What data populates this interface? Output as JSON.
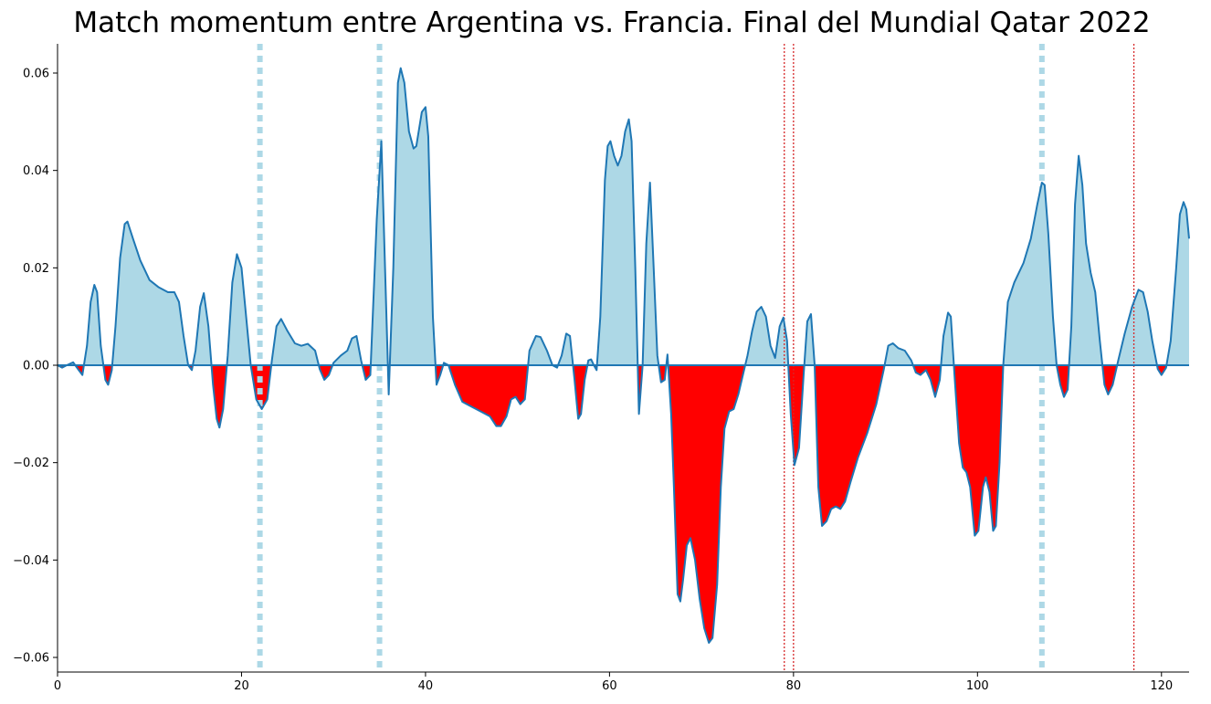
{
  "chart_data": {
    "type": "area",
    "title": "Match momentum entre Argentina vs. Francia. Final del Mundial Qatar 2022",
    "xlabel": "",
    "ylabel": "",
    "xlim": [
      0,
      123
    ],
    "ylim": [
      -0.063,
      0.066
    ],
    "grid": false,
    "x_ticks": [
      0,
      20,
      40,
      60,
      80,
      100,
      120
    ],
    "y_ticks": [
      -0.06,
      -0.04,
      -0.02,
      0.0,
      0.02,
      0.04,
      0.06
    ],
    "x_tick_labels": [
      "0",
      "20",
      "40",
      "60",
      "80",
      "100",
      "120"
    ],
    "y_tick_labels": [
      "−0.06",
      "−0.04",
      "−0.02",
      "0.00",
      "0.02",
      "0.04",
      "0.06"
    ],
    "series": [
      {
        "values": [
          [
            0,
            0
          ],
          [
            0.5,
            -0.0005
          ],
          [
            1,
            0
          ],
          [
            1.7,
            0.0006
          ],
          [
            2.3,
            -0.001
          ],
          [
            2.7,
            -0.002
          ],
          [
            3.2,
            0.004
          ],
          [
            3.6,
            0.013
          ],
          [
            4,
            0.0165
          ],
          [
            4.3,
            0.015
          ],
          [
            4.7,
            0.004
          ],
          [
            5.2,
            -0.003
          ],
          [
            5.5,
            -0.004
          ],
          [
            5.9,
            -0.001
          ],
          [
            6.3,
            0.008
          ],
          [
            6.8,
            0.022
          ],
          [
            7.3,
            0.029
          ],
          [
            7.6,
            0.0295
          ],
          [
            8.2,
            0.026
          ],
          [
            9,
            0.0215
          ],
          [
            10,
            0.0175
          ],
          [
            11,
            0.016
          ],
          [
            12,
            0.015
          ],
          [
            12.7,
            0.015
          ],
          [
            13.2,
            0.013
          ],
          [
            13.7,
            0.006
          ],
          [
            14.2,
            0
          ],
          [
            14.6,
            -0.001
          ],
          [
            15,
            0.003
          ],
          [
            15.5,
            0.012
          ],
          [
            15.9,
            0.0148
          ],
          [
            16.4,
            0.008
          ],
          [
            16.9,
            -0.004
          ],
          [
            17.3,
            -0.011
          ],
          [
            17.6,
            -0.0128
          ],
          [
            18,
            -0.009
          ],
          [
            18.5,
            0.002
          ],
          [
            19,
            0.017
          ],
          [
            19.5,
            0.0228
          ],
          [
            20,
            0.02
          ],
          [
            20.5,
            0.01
          ],
          [
            21,
            0
          ],
          [
            21.6,
            -0.007
          ],
          [
            22.2,
            -0.009
          ],
          [
            22.8,
            -0.007
          ],
          [
            23.3,
            0.001
          ],
          [
            23.8,
            0.008
          ],
          [
            24.3,
            0.0095
          ],
          [
            25,
            0.007
          ],
          [
            25.8,
            0.0045
          ],
          [
            26.5,
            0.004
          ],
          [
            27.2,
            0.0044
          ],
          [
            28,
            0.003
          ],
          [
            28.5,
            -0.0008
          ],
          [
            29,
            -0.003
          ],
          [
            29.5,
            -0.002
          ],
          [
            30,
            0.0005
          ],
          [
            30.8,
            0.002
          ],
          [
            31.5,
            0.003
          ],
          [
            32,
            0.0055
          ],
          [
            32.5,
            0.006
          ],
          [
            33,
            0.001
          ],
          [
            33.5,
            -0.003
          ],
          [
            34,
            -0.002
          ],
          [
            34.7,
            0.03
          ],
          [
            35.2,
            0.046
          ],
          [
            35.6,
            0.02
          ],
          [
            36,
            -0.006
          ],
          [
            36.5,
            0.02
          ],
          [
            37,
            0.058
          ],
          [
            37.3,
            0.061
          ],
          [
            37.7,
            0.058
          ],
          [
            38.2,
            0.048
          ],
          [
            38.7,
            0.0445
          ],
          [
            39,
            0.045
          ],
          [
            39.6,
            0.052
          ],
          [
            40,
            0.053
          ],
          [
            40.3,
            0.047
          ],
          [
            40.8,
            0.01
          ],
          [
            41.2,
            -0.004
          ],
          [
            41.6,
            -0.002
          ],
          [
            42,
            0.0005
          ],
          [
            42.5,
            0
          ],
          [
            43.2,
            -0.004
          ],
          [
            44,
            -0.0075
          ],
          [
            45,
            -0.0085
          ],
          [
            46,
            -0.0095
          ],
          [
            47,
            -0.0105
          ],
          [
            47.7,
            -0.0125
          ],
          [
            48.2,
            -0.0125
          ],
          [
            48.8,
            -0.0105
          ],
          [
            49.3,
            -0.007
          ],
          [
            49.8,
            -0.0065
          ],
          [
            50.3,
            -0.008
          ],
          [
            50.8,
            -0.007
          ],
          [
            51.3,
            0.003
          ],
          [
            52,
            0.006
          ],
          [
            52.5,
            0.0058
          ],
          [
            53.2,
            0.003
          ],
          [
            53.8,
            0
          ],
          [
            54.3,
            -0.0005
          ],
          [
            54.8,
            0.002
          ],
          [
            55.3,
            0.0065
          ],
          [
            55.7,
            0.006
          ],
          [
            56.2,
            -0.003
          ],
          [
            56.6,
            -0.011
          ],
          [
            56.9,
            -0.01
          ],
          [
            57.3,
            -0.003
          ],
          [
            57.7,
            0.001
          ],
          [
            58,
            0.0012
          ],
          [
            58.3,
            0
          ],
          [
            58.6,
            -0.001
          ],
          [
            59,
            0.01
          ],
          [
            59.5,
            0.038
          ],
          [
            59.8,
            0.045
          ],
          [
            60.1,
            0.046
          ],
          [
            60.5,
            0.043
          ],
          [
            60.9,
            0.041
          ],
          [
            61.3,
            0.043
          ],
          [
            61.7,
            0.048
          ],
          [
            62.1,
            0.0505
          ],
          [
            62.4,
            0.046
          ],
          [
            62.8,
            0.02
          ],
          [
            63.2,
            -0.01
          ],
          [
            63.6,
            0
          ],
          [
            64,
            0.025
          ],
          [
            64.4,
            0.0375
          ],
          [
            64.8,
            0.02
          ],
          [
            65.2,
            0.002
          ],
          [
            65.6,
            -0.0035
          ],
          [
            66,
            -0.003
          ],
          [
            66.3,
            0.0022
          ],
          [
            66.7,
            -0.01
          ],
          [
            67,
            -0.025
          ],
          [
            67.4,
            -0.047
          ],
          [
            67.7,
            -0.0485
          ],
          [
            68,
            -0.044
          ],
          [
            68.4,
            -0.037
          ],
          [
            68.8,
            -0.0355
          ],
          [
            69.3,
            -0.04
          ],
          [
            69.8,
            -0.048
          ],
          [
            70.3,
            -0.054
          ],
          [
            70.8,
            -0.057
          ],
          [
            71.2,
            -0.056
          ],
          [
            71.7,
            -0.045
          ],
          [
            72.1,
            -0.025
          ],
          [
            72.5,
            -0.013
          ],
          [
            73,
            -0.0095
          ],
          [
            73.5,
            -0.009
          ],
          [
            74,
            -0.006
          ],
          [
            74.5,
            -0.002
          ],
          [
            75,
            0.002
          ],
          [
            75.5,
            0.007
          ],
          [
            76,
            0.011
          ],
          [
            76.5,
            0.012
          ],
          [
            77,
            0.01
          ],
          [
            77.5,
            0.004
          ],
          [
            78,
            0.0015
          ],
          [
            78.5,
            0.008
          ],
          [
            78.9,
            0.0098
          ],
          [
            79.3,
            0.005
          ],
          [
            79.7,
            -0.01
          ],
          [
            80.1,
            -0.0205
          ],
          [
            80.6,
            -0.017
          ],
          [
            81.1,
            -0.002
          ],
          [
            81.5,
            0.009
          ],
          [
            81.9,
            0.0105
          ],
          [
            82.3,
            0
          ],
          [
            82.7,
            -0.025
          ],
          [
            83.1,
            -0.033
          ],
          [
            83.6,
            -0.032
          ],
          [
            84.1,
            -0.0295
          ],
          [
            84.6,
            -0.029
          ],
          [
            85.1,
            -0.0295
          ],
          [
            85.6,
            -0.028
          ],
          [
            86.2,
            -0.024
          ],
          [
            87,
            -0.019
          ],
          [
            88,
            -0.014
          ],
          [
            89,
            -0.008
          ],
          [
            89.8,
            -0.001
          ],
          [
            90.3,
            0.004
          ],
          [
            90.8,
            0.0045
          ],
          [
            91.4,
            0.0035
          ],
          [
            92.1,
            0.003
          ],
          [
            92.8,
            0.001
          ],
          [
            93.3,
            -0.0015
          ],
          [
            93.8,
            -0.002
          ],
          [
            94.4,
            -0.001
          ],
          [
            94.9,
            -0.003
          ],
          [
            95.4,
            -0.0065
          ],
          [
            95.9,
            -0.003
          ],
          [
            96.3,
            0.006
          ],
          [
            96.8,
            0.0108
          ],
          [
            97.1,
            0.01
          ],
          [
            97.5,
            -0.002
          ],
          [
            98,
            -0.016
          ],
          [
            98.4,
            -0.021
          ],
          [
            98.8,
            -0.022
          ],
          [
            99.2,
            -0.025
          ],
          [
            99.7,
            -0.035
          ],
          [
            100.1,
            -0.034
          ],
          [
            100.6,
            -0.025
          ],
          [
            100.9,
            -0.023
          ],
          [
            101.3,
            -0.026
          ],
          [
            101.7,
            -0.034
          ],
          [
            102,
            -0.033
          ],
          [
            102.4,
            -0.02
          ],
          [
            102.8,
            0
          ],
          [
            103.3,
            0.013
          ],
          [
            104,
            0.017
          ],
          [
            105,
            0.021
          ],
          [
            105.8,
            0.026
          ],
          [
            106.5,
            0.033
          ],
          [
            107,
            0.0375
          ],
          [
            107.3,
            0.037
          ],
          [
            107.7,
            0.027
          ],
          [
            108.2,
            0.01
          ],
          [
            108.6,
            0
          ],
          [
            109,
            -0.004
          ],
          [
            109.4,
            -0.0065
          ],
          [
            109.8,
            -0.005
          ],
          [
            110.2,
            0.008
          ],
          [
            110.6,
            0.033
          ],
          [
            111,
            0.043
          ],
          [
            111.4,
            0.037
          ],
          [
            111.8,
            0.025
          ],
          [
            112.3,
            0.019
          ],
          [
            112.8,
            0.015
          ],
          [
            113.3,
            0.005
          ],
          [
            113.8,
            -0.004
          ],
          [
            114.2,
            -0.006
          ],
          [
            114.7,
            -0.004
          ],
          [
            115.3,
            0.001
          ],
          [
            116,
            0.0065
          ],
          [
            116.8,
            0.012
          ],
          [
            117.5,
            0.0155
          ],
          [
            118,
            0.015
          ],
          [
            118.5,
            0.011
          ],
          [
            119,
            0.005
          ],
          [
            119.6,
            -0.0008
          ],
          [
            120,
            -0.002
          ],
          [
            120.5,
            -0.0005
          ],
          [
            121,
            0.005
          ],
          [
            121.6,
            0.02
          ],
          [
            122,
            0.031
          ],
          [
            122.4,
            0.0335
          ],
          [
            122.7,
            0.032
          ],
          [
            123,
            0.026
          ]
        ]
      }
    ],
    "positive_color": "#add8e6",
    "negative_color": "#ff0000",
    "line_color": "#1f77b4",
    "markers": [
      {
        "x": 22,
        "style": "dotted",
        "color": "#add8e6"
      },
      {
        "x": 35,
        "style": "dotted",
        "color": "#add8e6"
      },
      {
        "x": 107,
        "style": "dotted",
        "color": "#add8e6"
      },
      {
        "x": 79,
        "style": "dotted",
        "color": "#d62728"
      },
      {
        "x": 80,
        "style": "dotted",
        "color": "#d62728"
      },
      {
        "x": 117,
        "style": "dotted",
        "color": "#d62728"
      }
    ]
  }
}
